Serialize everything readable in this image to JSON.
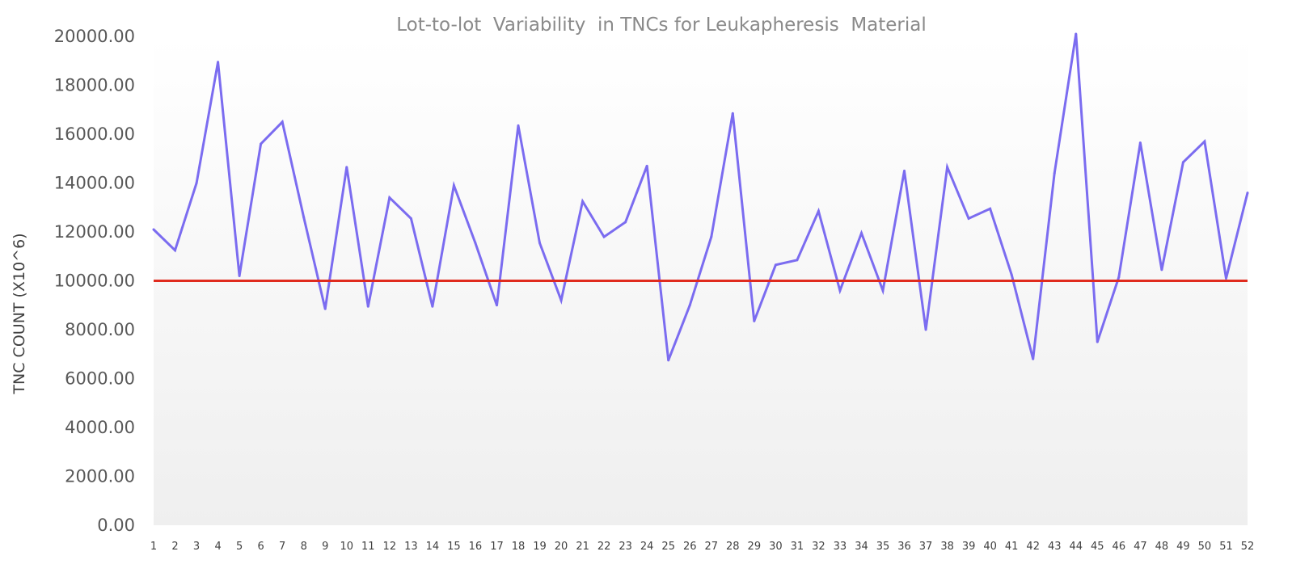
{
  "chart_data": {
    "type": "line",
    "title": "Lot-to-lot  Variability  in TNCs for Leukapheresis  Material",
    "xlabel": "",
    "ylabel": "TNC COUNT (X10^6)",
    "ylim": [
      0,
      20000
    ],
    "y_ticks": [
      "0.00",
      "2000.00",
      "4000.00",
      "6000.00",
      "8000.00",
      "10000.00",
      "12000.00",
      "14000.00",
      "16000.00",
      "18000.00",
      "20000.00"
    ],
    "categories": [
      "1",
      "2",
      "3",
      "4",
      "5",
      "6",
      "7",
      "8",
      "9",
      "10",
      "11",
      "12",
      "13",
      "14",
      "15",
      "16",
      "17",
      "18",
      "19",
      "20",
      "21",
      "22",
      "23",
      "24",
      "25",
      "26",
      "27",
      "28",
      "29",
      "30",
      "31",
      "32",
      "33",
      "34",
      "35",
      "36",
      "37",
      "38",
      "39",
      "40",
      "41",
      "42",
      "43",
      "44",
      "45",
      "46",
      "47",
      "48",
      "49",
      "50",
      "51",
      "52"
    ],
    "series": [
      {
        "color": "#7b6cf0",
        "values": [
          12100,
          11250,
          14000,
          18950,
          10200,
          15600,
          16500,
          12600,
          8850,
          14650,
          8950,
          13400,
          12550,
          8950,
          13900,
          11550,
          9000,
          16350,
          11550,
          9200,
          13250,
          11800,
          12400,
          14700,
          6750,
          9000,
          11800,
          16850,
          8350,
          10650,
          10850,
          12850,
          9600,
          11950,
          9600,
          14500,
          8000,
          14650,
          12550,
          12950,
          10250,
          6800,
          14400,
          20100,
          7500,
          10150,
          15650,
          10450,
          14850,
          15700,
          10100,
          13600
        ]
      }
    ],
    "reference_line": {
      "value": 10000,
      "color": "#e02b1e"
    },
    "grid": false,
    "legend": "none",
    "background_gradient": [
      "#ffffff",
      "#efefef"
    ]
  }
}
